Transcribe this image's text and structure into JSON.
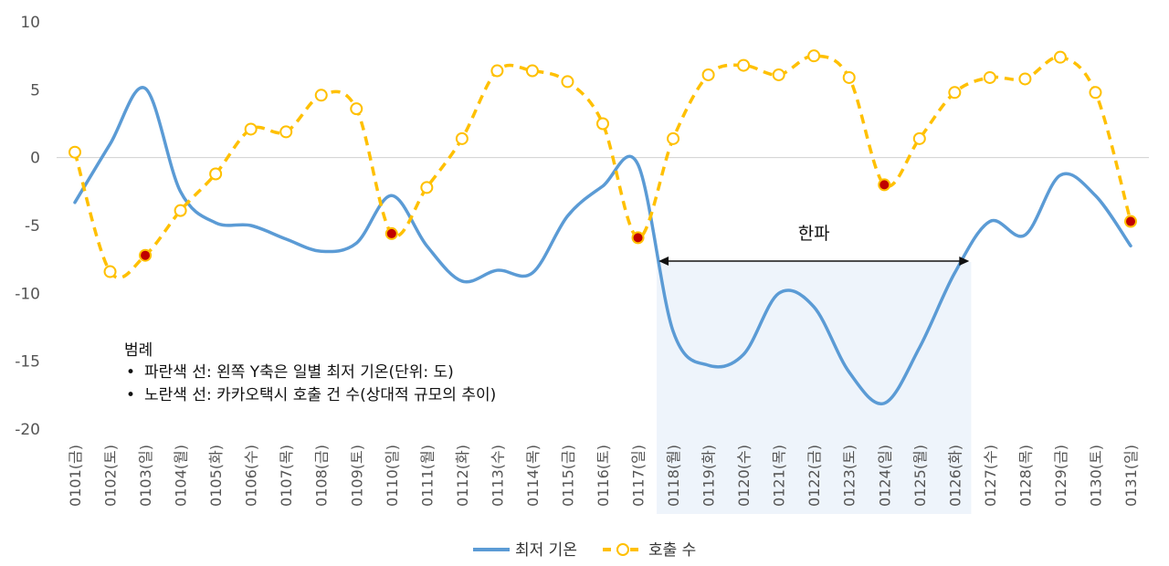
{
  "chart_data": {
    "type": "line",
    "categories": [
      "0101(금)",
      "0102(토)",
      "0103(일)",
      "0104(월)",
      "0105(화)",
      "0106(수)",
      "0107(목)",
      "0108(금)",
      "0109(토)",
      "0110(일)",
      "0111(월)",
      "0112(화)",
      "0113(수)",
      "0114(목)",
      "0115(금)",
      "0116(토)",
      "0117(일)",
      "0118(월)",
      "0119(화)",
      "0120(수)",
      "0121(목)",
      "0122(금)",
      "0123(토)",
      "0124(일)",
      "0125(월)",
      "0126(화)",
      "0127(수)",
      "0128(목)",
      "0129(금)",
      "0130(토)",
      "0131(일)"
    ],
    "y_ticks": [
      "10",
      "5",
      "0",
      "-5",
      "-10",
      "-15",
      "-20"
    ],
    "ylim": [
      -20,
      10
    ],
    "series": [
      {
        "name": "최저 기온",
        "color": "#5B9BD5",
        "style": "solid",
        "values": [
          -3.3,
          1.0,
          5.1,
          -2.5,
          -4.8,
          -5.0,
          -6.0,
          -6.9,
          -6.3,
          -2.8,
          -6.5,
          -9.1,
          -8.3,
          -8.5,
          -4.3,
          -2.1,
          -0.5,
          -12.8,
          -15.3,
          -14.5,
          -10.0,
          -11.0,
          -15.8,
          -18.1,
          -14.0,
          -8.5,
          -4.7,
          -5.7,
          -1.3,
          -2.8,
          -6.5
        ]
      },
      {
        "name": "호출 수",
        "color": "#FFC000",
        "style": "dashed",
        "values": [
          0.4,
          -8.4,
          -7.2,
          -3.9,
          -1.2,
          2.1,
          1.9,
          4.6,
          3.6,
          -5.6,
          -2.2,
          1.4,
          6.4,
          6.4,
          5.6,
          2.5,
          -5.9,
          1.4,
          6.1,
          6.8,
          6.1,
          7.5,
          5.9,
          -2.0,
          1.4,
          4.8,
          5.9,
          5.8,
          7.4,
          4.8,
          -4.7
        ],
        "highlighted_points_indices": [
          2,
          9,
          16,
          23,
          30
        ],
        "highlight_color": "#C00000"
      }
    ],
    "annotation": {
      "label": "한파",
      "start_category": "0118(월)",
      "end_category": "0126(화)",
      "shade_color": "#EEF4FB"
    },
    "notes": {
      "title": "범례",
      "items": [
        "파란색 선: 왼쪽 Y축은 일별 최저 기온(단위: 도)",
        "노란색 선: 카카오택시 호출 건 수(상대적 규모의 추이)"
      ],
      "bullet": "•"
    },
    "legend_position": "bottom-center",
    "grid": false
  }
}
